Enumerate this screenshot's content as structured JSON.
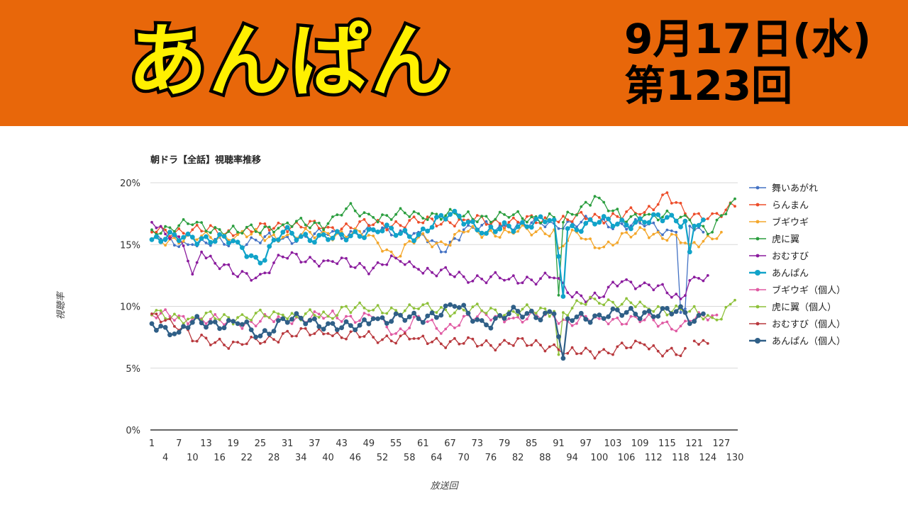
{
  "header": {
    "logo_text": "あんぱん",
    "date": "9月17日(水)",
    "episode": "第123回"
  },
  "chart_data": {
    "type": "line",
    "title": "朝ドラ【全話】視聴率推移",
    "xlabel": "放送回",
    "ylabel": "視聴率",
    "ylim": [
      0,
      20
    ],
    "yticks": [
      "0%",
      "5%",
      "10%",
      "15%",
      "20%"
    ],
    "xlim": [
      1,
      130
    ],
    "xticks_top": [
      1,
      7,
      13,
      19,
      25,
      31,
      37,
      43,
      49,
      55,
      61,
      67,
      73,
      79,
      85,
      91,
      97,
      103,
      109,
      115,
      121,
      127
    ],
    "xticks_bottom": [
      4,
      10,
      16,
      22,
      28,
      34,
      40,
      46,
      52,
      58,
      64,
      70,
      76,
      82,
      88,
      94,
      100,
      106,
      112,
      118,
      124,
      130
    ],
    "grid": true,
    "legend_position": "right",
    "series": [
      {
        "name": "舞いあがれ",
        "color": "#4472c4",
        "thick": false,
        "segments": [
          [
            1,
            16.1
          ],
          [
            4,
            15.3
          ],
          [
            10,
            15.0
          ],
          [
            20,
            15.2
          ],
          [
            30,
            15.5
          ],
          [
            40,
            15.8
          ],
          [
            50,
            16.1
          ],
          [
            60,
            16.0
          ],
          [
            65,
            14.4
          ],
          [
            70,
            16.2
          ],
          [
            80,
            16.5
          ],
          [
            90,
            16.7
          ],
          [
            100,
            16.8
          ],
          [
            110,
            16.5
          ],
          [
            117,
            16.0
          ],
          [
            118,
            9.5
          ],
          [
            119,
            9.8
          ],
          [
            120,
            16.5
          ],
          [
            123,
            16.0
          ]
        ]
      },
      {
        "name": "らんまん",
        "color": "#ed4d2a",
        "thick": false,
        "segments": [
          [
            1,
            16.0
          ],
          [
            10,
            16.2
          ],
          [
            20,
            15.9
          ],
          [
            30,
            16.6
          ],
          [
            40,
            16.4
          ],
          [
            50,
            16.6
          ],
          [
            60,
            16.8
          ],
          [
            70,
            17.0
          ],
          [
            80,
            16.8
          ],
          [
            90,
            17.0
          ],
          [
            100,
            17.2
          ],
          [
            110,
            17.6
          ],
          [
            115,
            19.2
          ],
          [
            120,
            17.0
          ],
          [
            125,
            17.5
          ],
          [
            130,
            18.1
          ]
        ]
      },
      {
        "name": "ブギウギ",
        "color": "#f4a72b",
        "thick": false,
        "segments": [
          [
            1,
            15.4
          ],
          [
            10,
            15.5
          ],
          [
            20,
            15.8
          ],
          [
            30,
            15.6
          ],
          [
            40,
            15.9
          ],
          [
            50,
            15.7
          ],
          [
            55,
            13.9
          ],
          [
            60,
            15.6
          ],
          [
            66,
            15.0
          ],
          [
            70,
            16.0
          ],
          [
            80,
            16.0
          ],
          [
            90,
            16.2
          ],
          [
            91,
            14.7
          ],
          [
            95,
            16.0
          ],
          [
            100,
            14.7
          ],
          [
            110,
            16.2
          ],
          [
            120,
            15.0
          ],
          [
            127,
            16.0
          ]
        ]
      },
      {
        "name": "虎に翼",
        "color": "#2b9e3f",
        "thick": false,
        "segments": [
          [
            1,
            16.2
          ],
          [
            10,
            16.6
          ],
          [
            20,
            16.0
          ],
          [
            30,
            16.6
          ],
          [
            40,
            16.7
          ],
          [
            44,
            17.9
          ],
          [
            50,
            17.2
          ],
          [
            60,
            17.5
          ],
          [
            70,
            17.3
          ],
          [
            80,
            17.2
          ],
          [
            90,
            17.2
          ],
          [
            91,
            10.9
          ],
          [
            92,
            16.8
          ],
          [
            99,
            18.9
          ],
          [
            105,
            17.0
          ],
          [
            110,
            17.4
          ],
          [
            120,
            17.0
          ],
          [
            125,
            16.0
          ],
          [
            130,
            18.7
          ]
        ]
      },
      {
        "name": "おむすび",
        "color": "#8b1c9e",
        "thick": false,
        "segments": [
          [
            1,
            16.8
          ],
          [
            8,
            14.9
          ],
          [
            10,
            12.6
          ],
          [
            12,
            14.4
          ],
          [
            20,
            12.4
          ],
          [
            25,
            12.6
          ],
          [
            30,
            14.0
          ],
          [
            40,
            13.7
          ],
          [
            50,
            13.1
          ],
          [
            55,
            13.9
          ],
          [
            60,
            13.0
          ],
          [
            70,
            12.4
          ],
          [
            80,
            12.2
          ],
          [
            90,
            12.3
          ],
          [
            93,
            11.1
          ],
          [
            100,
            10.7
          ],
          [
            105,
            12.0
          ],
          [
            110,
            11.9
          ],
          [
            118,
            10.6
          ],
          [
            120,
            12.1
          ],
          [
            124,
            12.5
          ]
        ]
      },
      {
        "name": "あんぱん",
        "color": "#11a3c9",
        "thick": true,
        "segments": [
          [
            1,
            15.4
          ],
          [
            10,
            15.6
          ],
          [
            20,
            15.2
          ],
          [
            25,
            13.5
          ],
          [
            30,
            16.0
          ],
          [
            40,
            15.4
          ],
          [
            50,
            16.2
          ],
          [
            60,
            15.8
          ],
          [
            68,
            17.7
          ],
          [
            75,
            15.9
          ],
          [
            80,
            16.5
          ],
          [
            90,
            17.0
          ],
          [
            92,
            10.8
          ],
          [
            93,
            16.3
          ],
          [
            100,
            16.8
          ],
          [
            110,
            16.8
          ],
          [
            115,
            17.2
          ],
          [
            119,
            16.9
          ],
          [
            120,
            14.4
          ],
          [
            121,
            16.5
          ],
          [
            123,
            17.0
          ]
        ]
      },
      {
        "name": "ブギウギ（個人）",
        "color": "#e05aa3",
        "thick": false,
        "segments": [
          [
            1,
            9.3
          ],
          [
            10,
            9.0
          ],
          [
            20,
            8.6
          ],
          [
            30,
            9.0
          ],
          [
            40,
            9.2
          ],
          [
            50,
            9.1
          ],
          [
            55,
            7.8
          ],
          [
            60,
            9.2
          ],
          [
            65,
            7.8
          ],
          [
            70,
            9.2
          ],
          [
            80,
            9.0
          ],
          [
            90,
            9.2
          ],
          [
            93,
            8.8
          ],
          [
            100,
            9.0
          ],
          [
            110,
            8.9
          ],
          [
            118,
            8.4
          ],
          [
            120,
            8.8
          ],
          [
            126,
            9.3
          ]
        ]
      },
      {
        "name": "虎に翼（個人）",
        "color": "#8ec13a",
        "thick": false,
        "segments": [
          [
            1,
            9.3
          ],
          [
            10,
            9.1
          ],
          [
            20,
            9.1
          ],
          [
            30,
            9.3
          ],
          [
            40,
            9.2
          ],
          [
            44,
            10.0
          ],
          [
            50,
            9.7
          ],
          [
            60,
            9.8
          ],
          [
            70,
            9.7
          ],
          [
            80,
            9.6
          ],
          [
            90,
            9.6
          ],
          [
            91,
            6.1
          ],
          [
            92,
            9.5
          ],
          [
            99,
            10.6
          ],
          [
            110,
            10.0
          ],
          [
            120,
            9.6
          ],
          [
            126,
            8.9
          ],
          [
            130,
            10.5
          ]
        ]
      },
      {
        "name": "おむすび（個人）",
        "color": "#b8383d",
        "thick": false,
        "segments": [
          [
            1,
            9.4
          ],
          [
            8,
            8.4
          ],
          [
            10,
            7.2
          ],
          [
            20,
            7.1
          ],
          [
            25,
            7.0
          ],
          [
            30,
            7.8
          ],
          [
            40,
            7.8
          ],
          [
            50,
            7.5
          ],
          [
            60,
            7.4
          ],
          [
            70,
            7.0
          ],
          [
            80,
            7.0
          ],
          [
            90,
            6.9
          ],
          [
            93,
            6.2
          ],
          [
            100,
            6.3
          ],
          [
            110,
            6.9
          ],
          [
            118,
            6.0
          ],
          [
            119,
            6.6
          ],
          [
            null,
            null
          ],
          [
            121,
            7.2
          ],
          [
            124,
            7.0
          ]
        ]
      },
      {
        "name": "あんぱん（個人）",
        "color": "#2f5f87",
        "thick": true,
        "segments": [
          [
            1,
            8.6
          ],
          [
            7,
            7.9
          ],
          [
            10,
            8.7
          ],
          [
            20,
            8.6
          ],
          [
            25,
            7.6
          ],
          [
            30,
            9.0
          ],
          [
            40,
            8.6
          ],
          [
            46,
            8.1
          ],
          [
            50,
            9.0
          ],
          [
            60,
            9.0
          ],
          [
            68,
            10.0
          ],
          [
            75,
            8.5
          ],
          [
            80,
            9.4
          ],
          [
            90,
            9.4
          ],
          [
            92,
            5.8
          ],
          [
            93,
            9.0
          ],
          [
            100,
            9.3
          ],
          [
            110,
            9.5
          ],
          [
            119,
            9.5
          ],
          [
            120,
            8.6
          ],
          [
            123,
            9.4
          ]
        ]
      }
    ]
  }
}
